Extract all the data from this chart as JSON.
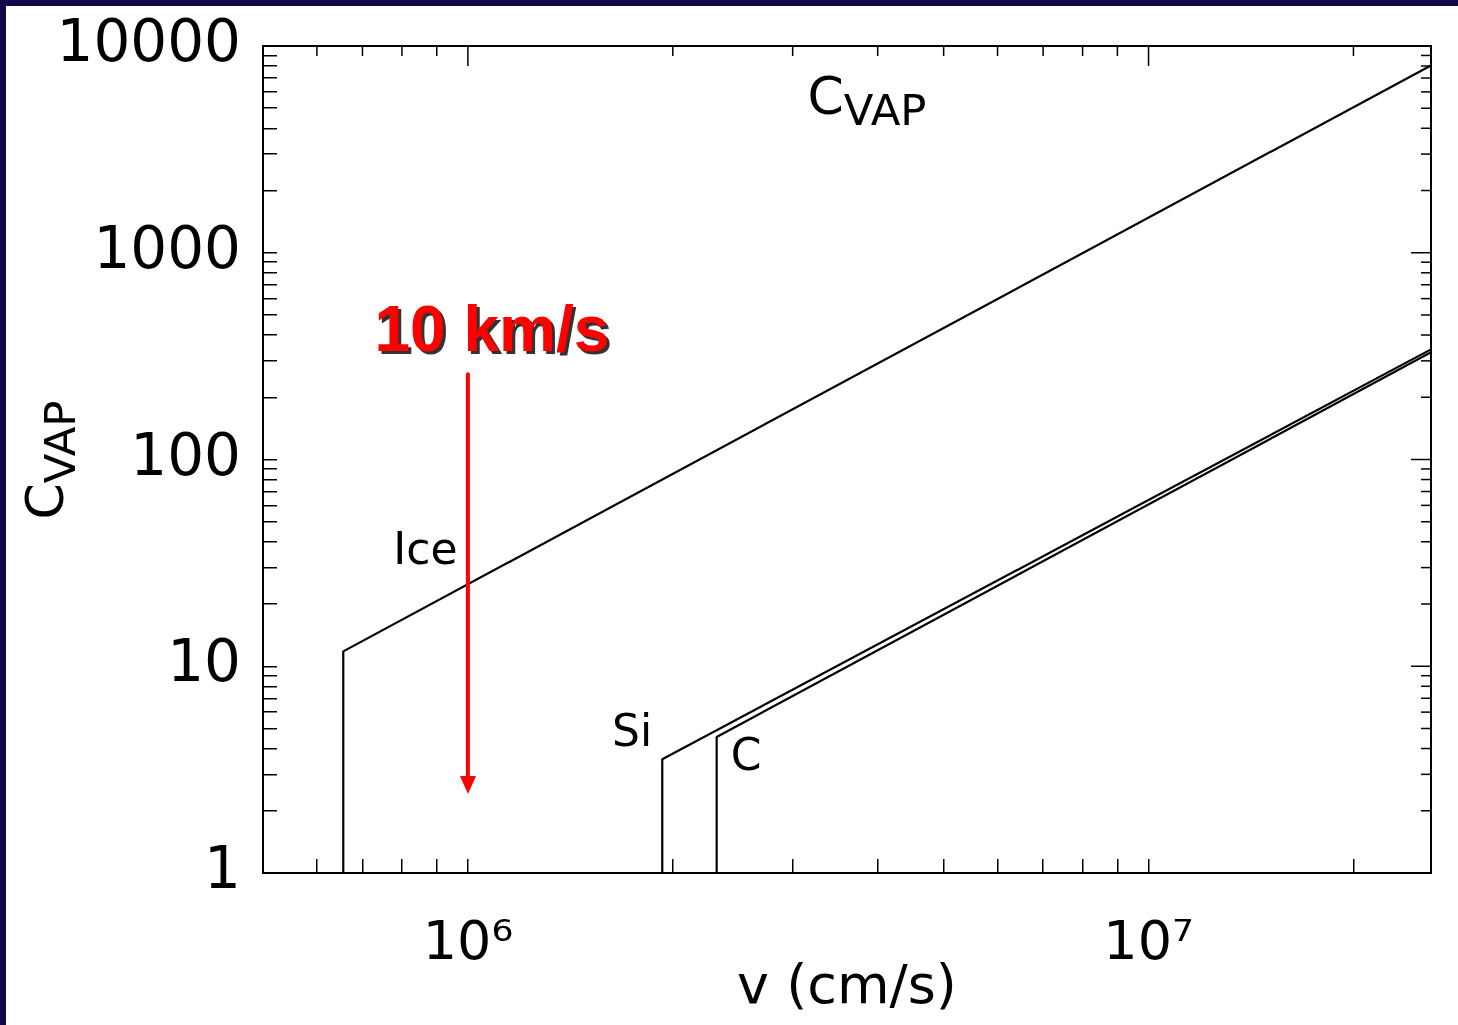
{
  "chart_data": {
    "type": "line",
    "title": "C$_{VAP}$",
    "xlabel": "v (cm/s)",
    "ylabel": "C$_{VAP}$",
    "log": "xy",
    "grid": false,
    "legend": false,
    "marker": "none",
    "line_style": "solid",
    "xlim": [
      500000,
      26000000
    ],
    "ylim": [
      1,
      10000
    ],
    "xticks": [
      {
        "value": 600000,
        "label": null
      },
      {
        "value": 700000,
        "label": null
      },
      {
        "value": 800000,
        "label": null
      },
      {
        "value": 900000,
        "label": null
      },
      {
        "value": 1000000,
        "label": "10⁶"
      },
      {
        "value": 2000000,
        "label": null
      },
      {
        "value": 3000000,
        "label": null
      },
      {
        "value": 4000000,
        "label": null
      },
      {
        "value": 5000000,
        "label": null
      },
      {
        "value": 6000000,
        "label": null
      },
      {
        "value": 7000000,
        "label": null
      },
      {
        "value": 8000000,
        "label": null
      },
      {
        "value": 9000000,
        "label": null
      },
      {
        "value": 10000000,
        "label": "10⁷"
      },
      {
        "value": 20000000,
        "label": null
      }
    ],
    "yticks": [
      1,
      {
        "value": 2,
        "label": null
      },
      {
        "value": 3,
        "label": null
      },
      {
        "value": 4,
        "label": null
      },
      {
        "value": 5,
        "label": null
      },
      {
        "value": 6,
        "label": null
      },
      {
        "value": 7,
        "label": null
      },
      {
        "value": 8,
        "label": null
      },
      {
        "value": 9,
        "label": null
      },
      10,
      {
        "value": 20,
        "label": null
      },
      {
        "value": 30,
        "label": null
      },
      {
        "value": 40,
        "label": null
      },
      {
        "value": 50,
        "label": null
      },
      {
        "value": 60,
        "label": null
      },
      {
        "value": 70,
        "label": null
      },
      {
        "value": 80,
        "label": null
      },
      {
        "value": 90,
        "label": null
      },
      100,
      {
        "value": 200,
        "label": null
      },
      {
        "value": 300,
        "label": null
      },
      {
        "value": 400,
        "label": null
      },
      {
        "value": 500,
        "label": null
      },
      {
        "value": 600,
        "label": null
      },
      {
        "value": 700,
        "label": null
      },
      {
        "value": 800,
        "label": null
      },
      {
        "value": 900,
        "label": null
      },
      1000,
      {
        "value": 2000,
        "label": null
      },
      {
        "value": 3000,
        "label": null
      },
      {
        "value": 4000,
        "label": null
      },
      {
        "value": 5000,
        "label": null
      },
      {
        "value": 6000,
        "label": null
      },
      {
        "value": 7000,
        "label": null
      },
      {
        "value": 8000,
        "label": null
      },
      {
        "value": 9000,
        "label": null
      },
      10000
    ],
    "series": [
      {
        "name": "Ice",
        "color": "#000000",
        "x": [
          656000,
          656000,
          26000000
        ],
        "values": [
          1,
          11.8,
          8050
        ]
      },
      {
        "name": "Si",
        "color": "#000000",
        "x": [
          1930000,
          1930000,
          26000000
        ],
        "values": [
          1,
          3.55,
          341
        ]
      },
      {
        "name": "C",
        "color": "#000000",
        "x": [
          2320000,
          2320000,
          26000000
        ],
        "values": [
          1,
          4.55,
          330
        ]
      }
    ],
    "ref_lines": [
      {
        "axis": "x",
        "value": 1000000,
        "label": "10 km/s",
        "color": "#ff0000"
      }
    ]
  }
}
